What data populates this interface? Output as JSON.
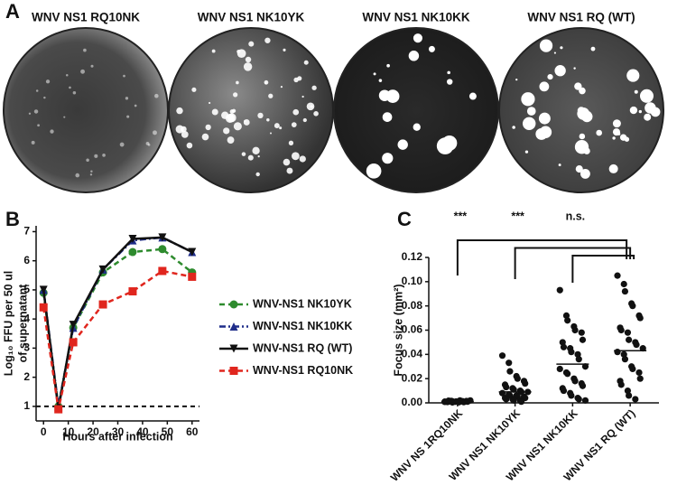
{
  "panel_a": {
    "letter": "A",
    "images": [
      {
        "title": "WNV NS1 RQ10NK"
      },
      {
        "title": "WNV NS1 NK10YK"
      },
      {
        "title": "WNV NS1 NK10KK"
      },
      {
        "title": "WNV NS1 RQ (WT)"
      }
    ]
  },
  "chart_data": [
    {
      "letter": "B",
      "type": "line",
      "x_label": "Hours after infection",
      "y_label": [
        "Log₁₀ FFU per 50 ul",
        "of supernatant"
      ],
      "x": [
        0,
        6,
        12,
        24,
        36,
        48,
        60
      ],
      "xlim": [
        -3,
        63
      ],
      "xticks": [
        0,
        10,
        20,
        30,
        40,
        50,
        60
      ],
      "ylim": [
        0.5,
        7.2
      ],
      "yticks": [
        1,
        2,
        3,
        4,
        5,
        6,
        7
      ],
      "threshold": 1,
      "series": [
        {
          "name": "WNV-NS1 NK10YK",
          "color": "#2e8b2e",
          "marker": "circle",
          "dash": "6,4",
          "values": [
            4.9,
            1.0,
            3.7,
            5.6,
            6.3,
            6.4,
            5.6
          ]
        },
        {
          "name": "WNV-NS1 NK10KK",
          "color": "#1f2d8a",
          "marker": "triangle",
          "dash": "7,3,2,3",
          "values": [
            5.0,
            1.0,
            3.7,
            5.7,
            6.7,
            6.8,
            6.3
          ]
        },
        {
          "name": "WNV-NS1 RQ (WT)",
          "color": "#111111",
          "marker": "triangle-down",
          "dash": "none",
          "values": [
            5.0,
            0.9,
            3.8,
            5.7,
            6.75,
            6.8,
            6.3
          ]
        },
        {
          "name": "WNV-NS1 RQ10NK",
          "color": "#e0261e",
          "marker": "square",
          "dash": "6,4",
          "values": [
            4.4,
            0.9,
            3.2,
            4.5,
            4.95,
            5.65,
            5.45
          ]
        }
      ]
    },
    {
      "letter": "C",
      "type": "dot",
      "y_label": "Focus size (mm²)",
      "categories": [
        "WNV NS 1RQ10NK",
        "WNV NS1 NK10YK",
        "WNV NS1 NK10KK",
        "WNV NS1 RQ (WT)"
      ],
      "ylim": [
        0,
        0.12
      ],
      "yticks": [
        {
          "value": 0,
          "label": "0.00"
        },
        {
          "value": 0.02,
          "label": "0.02"
        },
        {
          "value": 0.04,
          "label": "0.04"
        },
        {
          "value": 0.06,
          "label": "0.06"
        },
        {
          "value": 0.08,
          "label": "0.08"
        },
        {
          "value": 0.1,
          "label": "0.10"
        },
        {
          "value": 0.12,
          "label": "0.12"
        }
      ],
      "means": [
        0.001,
        0.009,
        0.032,
        0.043
      ],
      "significance": [
        "***",
        "***",
        "n.s."
      ],
      "points": [
        [
          0.0008,
          0.001,
          0.0012,
          0.0005,
          0.002,
          0.0015,
          0.001,
          0.0007,
          0.0018,
          0.0009,
          0.0011,
          0.0013,
          0.0006,
          0.002,
          0.001,
          0.0016,
          0.0004,
          0.0012
        ],
        [
          0.039,
          0.033,
          0.026,
          0.022,
          0.02,
          0.018,
          0.016,
          0.015,
          0.013,
          0.012,
          0.011,
          0.01,
          0.009,
          0.009,
          0.008,
          0.007,
          0.006,
          0.006,
          0.005,
          0.005,
          0.004,
          0.004,
          0.003,
          0.003,
          0.002,
          0.002,
          0.001
        ],
        [
          0.093,
          0.072,
          0.068,
          0.063,
          0.06,
          0.058,
          0.052,
          0.05,
          0.046,
          0.045,
          0.042,
          0.04,
          0.036,
          0.03,
          0.028,
          0.025,
          0.024,
          0.02,
          0.018,
          0.016,
          0.014,
          0.012,
          0.01,
          0.008,
          0.006,
          0.004,
          0.003,
          0.002
        ],
        [
          0.105,
          0.098,
          0.092,
          0.082,
          0.08,
          0.072,
          0.07,
          0.062,
          0.06,
          0.058,
          0.052,
          0.05,
          0.048,
          0.045,
          0.042,
          0.04,
          0.036,
          0.03,
          0.028,
          0.025,
          0.02,
          0.018,
          0.015,
          0.01,
          0.006,
          0.003
        ]
      ]
    }
  ]
}
